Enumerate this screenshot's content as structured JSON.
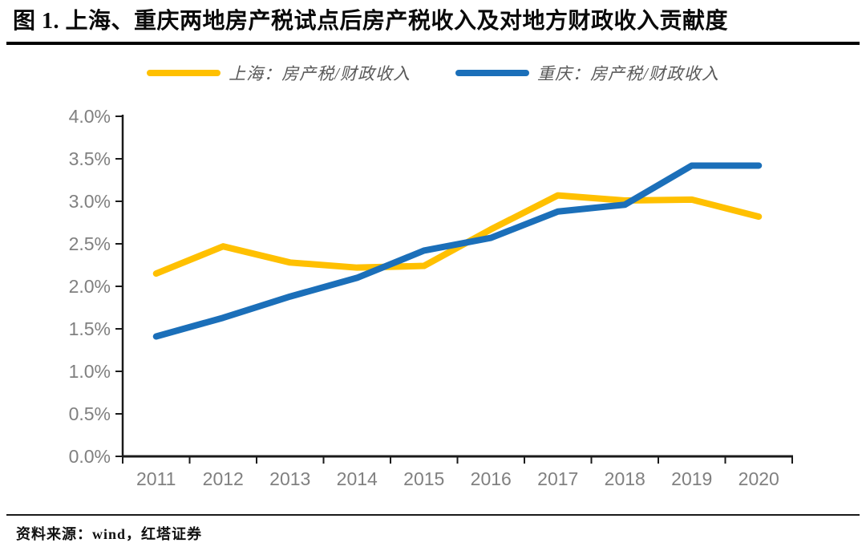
{
  "header": {
    "title": "图 1. 上海、重庆两地房产税试点后房产税收入及对地方财政收入贡献度"
  },
  "footer": {
    "source": "资料来源：wind，红塔证券"
  },
  "chart_data": {
    "type": "line",
    "title": "图 1. 上海、重庆两地房产税试点后房产税收入及对地方财政收入贡献度",
    "unit": "%",
    "categories": [
      "2011",
      "2012",
      "2013",
      "2014",
      "2015",
      "2016",
      "2017",
      "2018",
      "2019",
      "2020"
    ],
    "series": [
      {
        "id": "shanghai",
        "name": "上海：房产税/财政收入",
        "color": "#FFC000",
        "values": [
          2.15,
          2.47,
          2.28,
          2.22,
          2.24,
          2.67,
          3.07,
          3.01,
          3.02,
          2.82
        ]
      },
      {
        "id": "chongqing",
        "name": "重庆：房产税/财政收入",
        "color": "#1B6FB9",
        "values": [
          1.41,
          1.63,
          1.88,
          2.1,
          2.42,
          2.57,
          2.88,
          2.96,
          3.42,
          3.42
        ]
      }
    ],
    "xlabel": "",
    "ylabel": "",
    "ylim": [
      0,
      4
    ],
    "ytick_values": [
      0,
      0.5,
      1,
      1.5,
      2,
      2.5,
      3,
      3.5,
      4
    ],
    "ytick_labels": [
      "0.0%",
      "0.5%",
      "1.0%",
      "1.5%",
      "2.0%",
      "2.5%",
      "3.0%",
      "3.5%",
      "4.0%"
    ],
    "grid": false,
    "legend_position": "top"
  }
}
